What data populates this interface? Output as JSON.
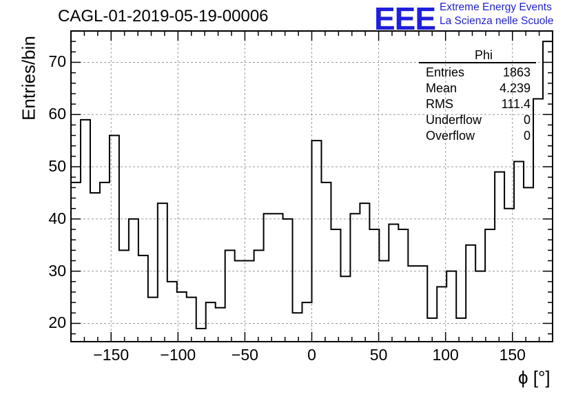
{
  "title": "CAGL-01-2019-05-19-00006",
  "logo": {
    "mark": "EEE",
    "line1": "Extreme Energy Events",
    "line2": "La Scienza nelle Scuole",
    "color": "#1f1fdc"
  },
  "stats_box": {
    "name": "Phi",
    "rows": [
      {
        "label": "Entries",
        "value": "1863"
      },
      {
        "label": "Mean",
        "value": "4.239"
      },
      {
        "label": "RMS",
        "value": "111.4"
      },
      {
        "label": "Underflow",
        "value": "0"
      },
      {
        "label": "Overflow",
        "value": "0"
      }
    ]
  },
  "chart_data": {
    "type": "bar",
    "histogram": true,
    "title": "CAGL-01-2019-05-19-00006",
    "xlabel": "ϕ [°]",
    "ylabel": "Entries/bin",
    "xlim": [
      -180,
      180
    ],
    "ylim": [
      16.5,
      76
    ],
    "grid": true,
    "bin_width": 7.2,
    "bin_edges_start": -180,
    "values": [
      47,
      59,
      45,
      47,
      56,
      34,
      40,
      33,
      25,
      43,
      28,
      26,
      25,
      19,
      24,
      23,
      34,
      32,
      32,
      34,
      41,
      41,
      40,
      22,
      24,
      55,
      47,
      38,
      29,
      41,
      43,
      38,
      32,
      39,
      38,
      31,
      31,
      21,
      27,
      30,
      21,
      35,
      30,
      38,
      49,
      42,
      51,
      46,
      63,
      74
    ],
    "x_ticks": [
      -150,
      -100,
      -50,
      0,
      50,
      100,
      150
    ],
    "x_tick_labels": [
      "−150",
      "−100",
      "−50",
      "0",
      "50",
      "100",
      "150"
    ],
    "y_ticks": [
      20,
      30,
      40,
      50,
      60,
      70
    ],
    "y_tick_labels": [
      "20",
      "30",
      "40",
      "50",
      "60",
      "70"
    ],
    "line_color": "#000000",
    "grid_color": "#9a9a9a"
  }
}
